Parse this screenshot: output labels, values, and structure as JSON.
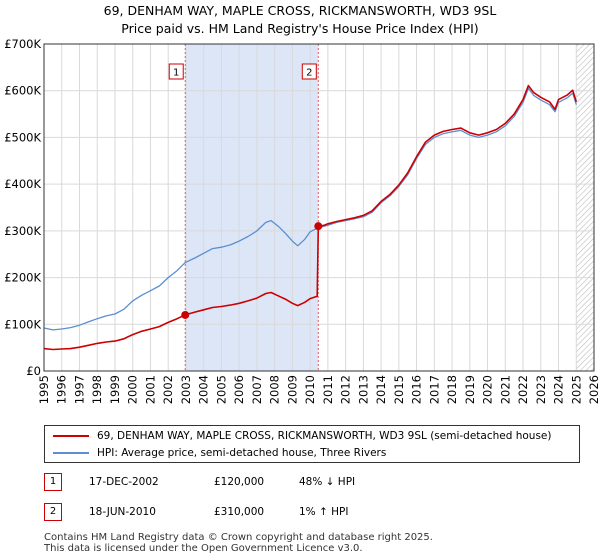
{
  "title_line1": "69, DENHAM WAY, MAPLE CROSS, RICKMANSWORTH, WD3 9SL",
  "title_line2": "Price paid vs. HM Land Registry's House Price Index (HPI)",
  "legend": {
    "property_label": "69, DENHAM WAY, MAPLE CROSS, RICKMANSWORTH, WD3 9SL (semi-detached house)",
    "hpi_label": "HPI: Average price, semi-detached house, Three Rivers"
  },
  "sales": [
    {
      "num": "1",
      "date": "17-DEC-2002",
      "price": "£120,000",
      "hpi": "48% ↓ HPI"
    },
    {
      "num": "2",
      "date": "18-JUN-2010",
      "price": "£310,000",
      "hpi": "1% ↑ HPI"
    }
  ],
  "footer_line1": "Contains HM Land Registry data © Crown copyright and database right 2025.",
  "footer_line2": "This data is licensed under the Open Government Licence v3.0.",
  "colors": {
    "property": "#cc0000",
    "hpi": "#5b8fd0",
    "highlight": "#dde6f7",
    "marker_line": "#e06060",
    "grid": "#d9d9d9"
  },
  "chart_data": {
    "type": "line",
    "title": "Price paid vs. HM Land Registry's House Price Index (HPI)",
    "xlim": [
      1995,
      2026
    ],
    "ylim": [
      0,
      700000
    ],
    "x_ticks": [
      1995,
      1996,
      1997,
      1998,
      1999,
      2000,
      2001,
      2002,
      2003,
      2004,
      2005,
      2006,
      2007,
      2008,
      2009,
      2010,
      2011,
      2012,
      2013,
      2014,
      2015,
      2016,
      2017,
      2018,
      2019,
      2020,
      2021,
      2022,
      2023,
      2024,
      2025,
      2026
    ],
    "y_ticks": [
      {
        "value": 0,
        "label": "£0"
      },
      {
        "value": 100000,
        "label": "£100K"
      },
      {
        "value": 200000,
        "label": "£200K"
      },
      {
        "value": 300000,
        "label": "£300K"
      },
      {
        "value": 400000,
        "label": "£400K"
      },
      {
        "value": 500000,
        "label": "£500K"
      },
      {
        "value": 600000,
        "label": "£600K"
      },
      {
        "value": 700000,
        "label": "£700K"
      }
    ],
    "highlight_range": [
      2002.96,
      2010.46
    ],
    "future_hatch_from": 2025.0,
    "markers": [
      {
        "label": "1",
        "x": 2002.96,
        "y": 120000
      },
      {
        "label": "2",
        "x": 2010.46,
        "y": 310000
      }
    ],
    "series": [
      {
        "name": "HPI: Average price, semi-detached house, Three Rivers",
        "points": [
          [
            1995.0,
            92000
          ],
          [
            1995.5,
            88000
          ],
          [
            1996.0,
            90000
          ],
          [
            1996.5,
            93000
          ],
          [
            1997.0,
            98000
          ],
          [
            1997.5,
            105000
          ],
          [
            1998.0,
            112000
          ],
          [
            1998.5,
            118000
          ],
          [
            1999.0,
            122000
          ],
          [
            1999.5,
            132000
          ],
          [
            2000.0,
            150000
          ],
          [
            2000.5,
            162000
          ],
          [
            2001.0,
            172000
          ],
          [
            2001.5,
            182000
          ],
          [
            2002.0,
            200000
          ],
          [
            2002.5,
            215000
          ],
          [
            2002.96,
            232000
          ],
          [
            2003.5,
            242000
          ],
          [
            2004.0,
            252000
          ],
          [
            2004.5,
            262000
          ],
          [
            2005.0,
            265000
          ],
          [
            2005.5,
            270000
          ],
          [
            2006.0,
            278000
          ],
          [
            2006.5,
            288000
          ],
          [
            2007.0,
            300000
          ],
          [
            2007.5,
            318000
          ],
          [
            2007.8,
            322000
          ],
          [
            2008.2,
            310000
          ],
          [
            2008.6,
            295000
          ],
          [
            2009.0,
            278000
          ],
          [
            2009.3,
            268000
          ],
          [
            2009.7,
            282000
          ],
          [
            2010.0,
            298000
          ],
          [
            2010.46,
            307000
          ],
          [
            2010.8,
            310000
          ],
          [
            2011.0,
            312000
          ],
          [
            2011.5,
            318000
          ],
          [
            2012.0,
            322000
          ],
          [
            2012.5,
            326000
          ],
          [
            2013.0,
            330000
          ],
          [
            2013.5,
            340000
          ],
          [
            2014.0,
            360000
          ],
          [
            2014.5,
            375000
          ],
          [
            2015.0,
            395000
          ],
          [
            2015.5,
            420000
          ],
          [
            2016.0,
            455000
          ],
          [
            2016.5,
            485000
          ],
          [
            2017.0,
            500000
          ],
          [
            2017.5,
            508000
          ],
          [
            2018.0,
            512000
          ],
          [
            2018.5,
            515000
          ],
          [
            2019.0,
            505000
          ],
          [
            2019.5,
            500000
          ],
          [
            2020.0,
            505000
          ],
          [
            2020.5,
            512000
          ],
          [
            2021.0,
            525000
          ],
          [
            2021.5,
            545000
          ],
          [
            2022.0,
            575000
          ],
          [
            2022.3,
            605000
          ],
          [
            2022.6,
            590000
          ],
          [
            2023.0,
            580000
          ],
          [
            2023.5,
            570000
          ],
          [
            2023.8,
            555000
          ],
          [
            2024.0,
            575000
          ],
          [
            2024.5,
            585000
          ],
          [
            2024.8,
            595000
          ],
          [
            2025.0,
            570000
          ]
        ]
      },
      {
        "name": "69, DENHAM WAY, MAPLE CROSS, RICKMANSWORTH, WD3 9SL (semi-detached house)",
        "points": [
          [
            1995.0,
            48000
          ],
          [
            1995.5,
            46000
          ],
          [
            1996.0,
            47000
          ],
          [
            1996.5,
            48000
          ],
          [
            1997.0,
            51000
          ],
          [
            1997.5,
            55000
          ],
          [
            1998.0,
            59000
          ],
          [
            1998.5,
            62000
          ],
          [
            1999.0,
            64000
          ],
          [
            1999.5,
            69000
          ],
          [
            2000.0,
            78000
          ],
          [
            2000.5,
            85000
          ],
          [
            2001.0,
            90000
          ],
          [
            2001.5,
            95000
          ],
          [
            2002.0,
            104000
          ],
          [
            2002.5,
            112000
          ],
          [
            2002.96,
            120000
          ],
          [
            2003.5,
            126000
          ],
          [
            2004.0,
            131000
          ],
          [
            2004.5,
            136000
          ],
          [
            2005.0,
            138000
          ],
          [
            2005.5,
            141000
          ],
          [
            2006.0,
            145000
          ],
          [
            2006.5,
            150000
          ],
          [
            2007.0,
            156000
          ],
          [
            2007.5,
            166000
          ],
          [
            2007.8,
            168000
          ],
          [
            2008.2,
            161000
          ],
          [
            2008.6,
            154000
          ],
          [
            2009.0,
            145000
          ],
          [
            2009.3,
            140000
          ],
          [
            2009.7,
            147000
          ],
          [
            2010.0,
            155000
          ],
          [
            2010.4,
            160000
          ],
          [
            2010.46,
            310000
          ],
          [
            2010.8,
            312000
          ],
          [
            2011.0,
            315000
          ],
          [
            2011.5,
            320000
          ],
          [
            2012.0,
            324000
          ],
          [
            2012.5,
            328000
          ],
          [
            2013.0,
            333000
          ],
          [
            2013.5,
            343000
          ],
          [
            2014.0,
            363000
          ],
          [
            2014.5,
            378000
          ],
          [
            2015.0,
            398000
          ],
          [
            2015.5,
            424000
          ],
          [
            2016.0,
            459000
          ],
          [
            2016.5,
            490000
          ],
          [
            2017.0,
            505000
          ],
          [
            2017.5,
            513000
          ],
          [
            2018.0,
            517000
          ],
          [
            2018.5,
            520000
          ],
          [
            2019.0,
            510000
          ],
          [
            2019.5,
            505000
          ],
          [
            2020.0,
            510000
          ],
          [
            2020.5,
            517000
          ],
          [
            2021.0,
            530000
          ],
          [
            2021.5,
            550000
          ],
          [
            2022.0,
            581000
          ],
          [
            2022.3,
            611000
          ],
          [
            2022.6,
            596000
          ],
          [
            2023.0,
            586000
          ],
          [
            2023.5,
            576000
          ],
          [
            2023.8,
            560000
          ],
          [
            2024.0,
            581000
          ],
          [
            2024.5,
            591000
          ],
          [
            2024.8,
            601000
          ],
          [
            2025.0,
            576000
          ]
        ]
      }
    ]
  }
}
